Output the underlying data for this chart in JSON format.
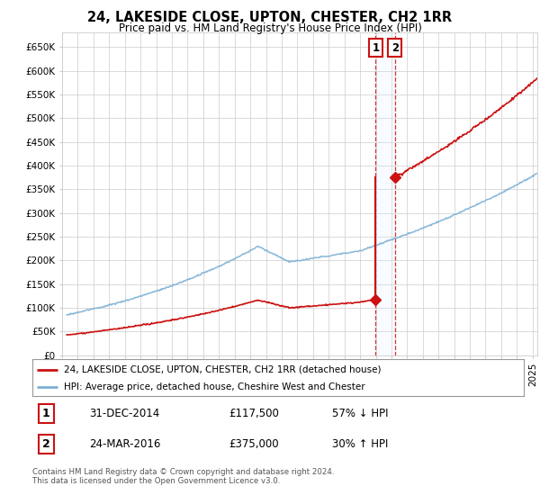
{
  "title": "24, LAKESIDE CLOSE, UPTON, CHESTER, CH2 1RR",
  "subtitle": "Price paid vs. HM Land Registry's House Price Index (HPI)",
  "ytick_values": [
    0,
    50000,
    100000,
    150000,
    200000,
    250000,
    300000,
    350000,
    400000,
    450000,
    500000,
    550000,
    600000,
    650000
  ],
  "ylim": [
    0,
    680000
  ],
  "xlim_start": 1995.3,
  "xlim_end": 2025.3,
  "hpi_color": "#7bafd4",
  "price_color": "#cc1111",
  "sale1_date": 2014.99,
  "sale1_price": 117500,
  "sale2_date": 2016.22,
  "sale2_price": 375000,
  "vline_color": "#cc1111",
  "highlight_box_color": "#ddeeff",
  "legend1_label": "24, LAKESIDE CLOSE, UPTON, CHESTER, CH2 1RR (detached house)",
  "legend2_label": "HPI: Average price, detached house, Cheshire West and Chester",
  "table_row1": [
    "1",
    "31-DEC-2014",
    "£117,500",
    "57% ↓ HPI"
  ],
  "table_row2": [
    "2",
    "24-MAR-2016",
    "£375,000",
    "30% ↑ HPI"
  ],
  "footer": "Contains HM Land Registry data © Crown copyright and database right 2024.\nThis data is licensed under the Open Government Licence v3.0.",
  "background_color": "#ffffff",
  "grid_color": "#cccccc"
}
